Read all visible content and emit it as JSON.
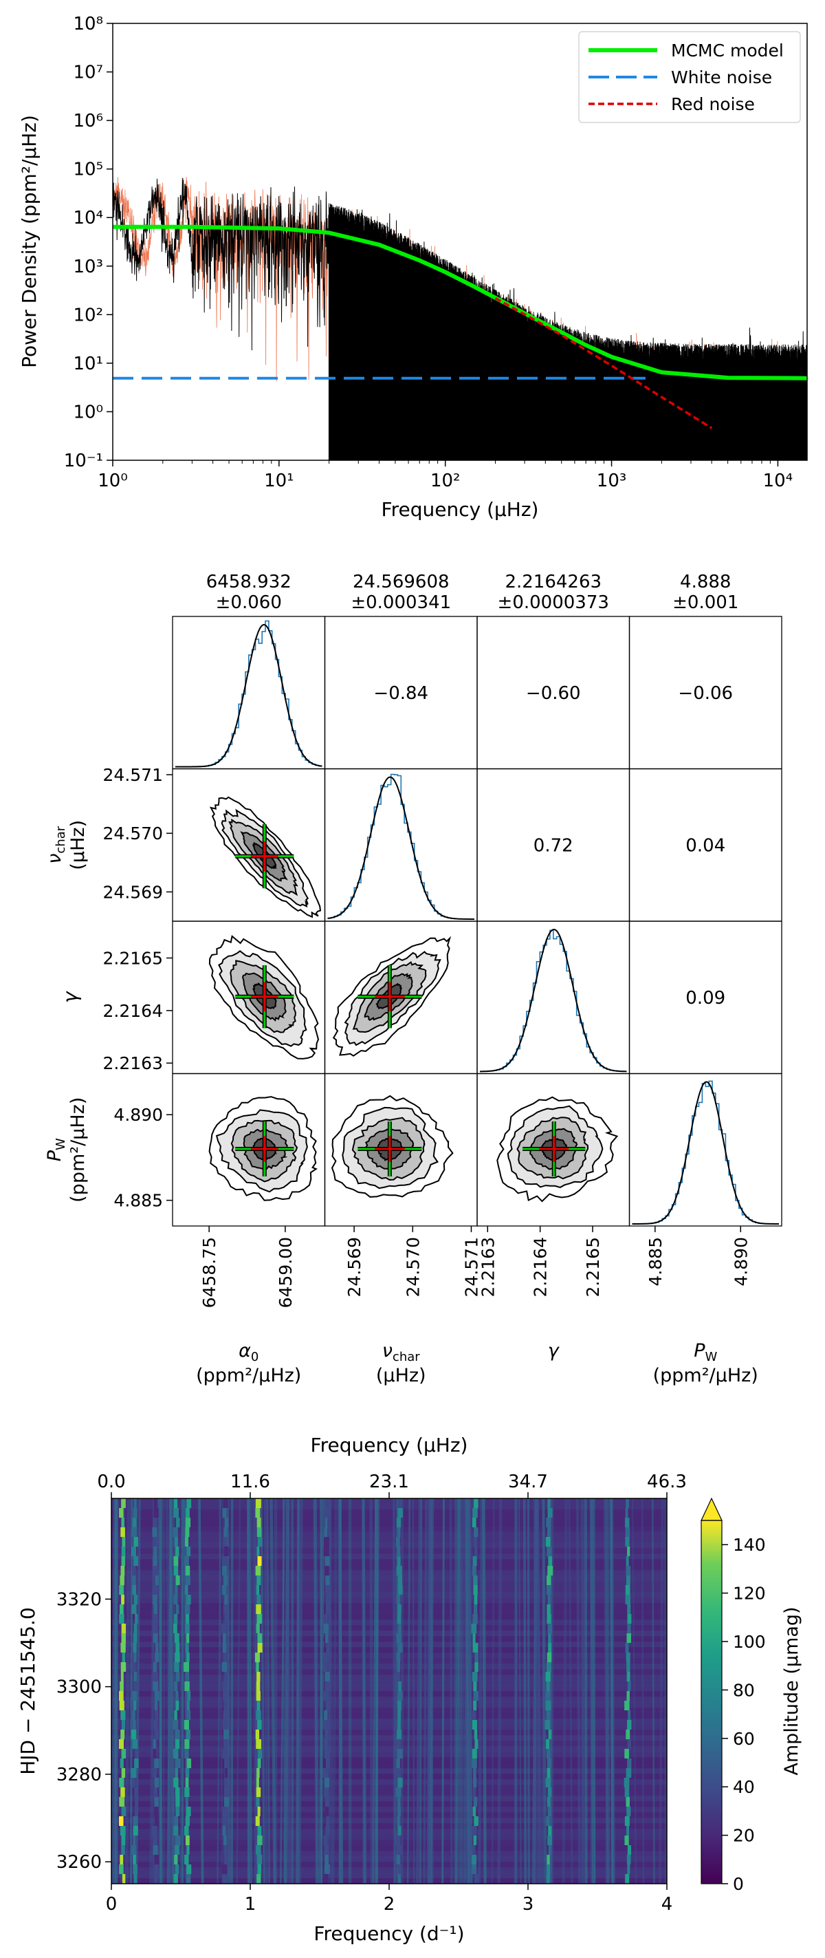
{
  "chart_data": [
    {
      "type": "line",
      "xscale": "log",
      "yscale": "log",
      "xlabel": "Frequency (μHz)",
      "ylabel": "Power Density (ppm²/μHz)",
      "xlim": [
        1,
        15000
      ],
      "ylim": [
        0.1,
        100000000
      ],
      "xticks": [
        {
          "value": 1,
          "label": "10⁰"
        },
        {
          "value": 10,
          "label": "10¹"
        },
        {
          "value": 100,
          "label": "10²"
        },
        {
          "value": 1000,
          "label": "10³"
        },
        {
          "value": 10000,
          "label": "10⁴"
        }
      ],
      "yticks": [
        {
          "value": 0.1,
          "label": "10⁻¹"
        },
        {
          "value": 1,
          "label": "10⁰"
        },
        {
          "value": 10,
          "label": "10¹"
        },
        {
          "value": 100,
          "label": "10²"
        },
        {
          "value": 1000,
          "label": "10³"
        },
        {
          "value": 10000,
          "label": "10⁴"
        },
        {
          "value": 100000,
          "label": "10⁵"
        },
        {
          "value": 1000000,
          "label": "10⁶"
        },
        {
          "value": 10000000,
          "label": "10⁷"
        },
        {
          "value": 100000000,
          "label": "10⁸"
        }
      ],
      "legend_position": "top-right",
      "series": [
        {
          "name": "MCMC model",
          "color": "#00ee00",
          "style": "solid",
          "x": [
            1,
            3,
            10,
            20,
            40,
            70,
            100,
            150,
            200,
            300,
            500,
            700,
            1000,
            2000,
            5000,
            15000
          ],
          "y": [
            6450,
            6430,
            5980,
            4860,
            2750,
            1310,
            755,
            374,
            223,
            106,
            43.2,
            23.6,
            13.5,
            6.5,
            5.0,
            4.9
          ]
        },
        {
          "name": "White noise",
          "color": "#1e88e5",
          "style": "dashed",
          "x": [
            1,
            1600
          ],
          "y": [
            4.888,
            4.888
          ]
        },
        {
          "name": "Red noise",
          "color": "#dd0000",
          "style": "dotted",
          "x": [
            200,
            300,
            500,
            1000,
            2000,
            4000
          ],
          "y": [
            218,
            101,
            38,
            8.9,
            2.0,
            0.46
          ]
        }
      ],
      "noisy_spectrum": {
        "description_colors": [
          "#000000",
          "#ee7752"
        ]
      }
    },
    {
      "type": "corner",
      "parameters": [
        {
          "name": "α₀",
          "unit": "(ppm²/μHz)",
          "value": "6458.932",
          "err": "±0.060",
          "mean": 6458.932,
          "sd": 0.06,
          "ticks": [
            "6458.75",
            "6459.00"
          ],
          "tick_values": [
            6458.75,
            6459.0
          ],
          "range": [
            6458.63,
            6459.13
          ]
        },
        {
          "name": "ν_char",
          "unit": "(μHz)",
          "value": "24.569608",
          "err": "±0.000341",
          "mean": 24.569608,
          "sd": 0.000341,
          "ticks": [
            "24.569",
            "24.570",
            "24.571"
          ],
          "tick_values": [
            24.569,
            24.57,
            24.571
          ],
          "range": [
            24.5685,
            24.5711
          ]
        },
        {
          "name": "γ",
          "unit": "",
          "value": "2.2164263",
          "err": "±0.0000373",
          "mean": 2.2164263,
          "sd": 3.73e-05,
          "ticks": [
            "2.2163",
            "2.2164",
            "2.2165"
          ],
          "tick_values": [
            2.2163,
            2.2164,
            2.2165
          ],
          "range": [
            2.21628,
            2.21657
          ]
        },
        {
          "name": "P_W",
          "unit": "(ppm²/μHz)",
          "value": "4.888",
          "err": "±0.001",
          "mean": 4.888,
          "sd": 0.001,
          "ticks": [
            "4.885",
            "4.890"
          ],
          "tick_values": [
            4.885,
            4.89
          ],
          "range": [
            4.8835,
            4.8924
          ]
        }
      ],
      "correlations": [
        {
          "row": 0,
          "col": 1,
          "value": "−0.84"
        },
        {
          "row": 0,
          "col": 2,
          "value": "−0.60"
        },
        {
          "row": 0,
          "col": 3,
          "value": "−0.06"
        },
        {
          "row": 1,
          "col": 2,
          "value": "0.72"
        },
        {
          "row": 1,
          "col": 3,
          "value": "0.04"
        },
        {
          "row": 2,
          "col": 3,
          "value": "0.09"
        }
      ],
      "row_labels": [
        {
          "main": "ν",
          "sub": "char",
          "unit": "(μHz)"
        },
        {
          "main": "γ",
          "sub": "",
          "unit": ""
        },
        {
          "main": "P",
          "sub": "W",
          "unit": "(ppm²/μHz)"
        }
      ],
      "col_labels": [
        {
          "main": "α",
          "sub": "0",
          "unit": "(ppm²/μHz)"
        },
        {
          "main": "ν",
          "sub": "char",
          "unit": "(μHz)"
        },
        {
          "main": "γ",
          "sub": "",
          "unit": ""
        },
        {
          "main": "P",
          "sub": "W",
          "unit": "(ppm²/μHz)"
        }
      ]
    },
    {
      "type": "heatmap",
      "xlabel": "Frequency (d⁻¹)",
      "x2label": "Frequency (μHz)",
      "ylabel": "HJD − 2451545.0",
      "colorbar_label": "Amplitude (μmag)",
      "xlim": [
        0,
        4
      ],
      "ylim": [
        3255,
        3343
      ],
      "clim": [
        0,
        150
      ],
      "xticks": [
        "0",
        "1",
        "2",
        "3",
        "4"
      ],
      "x2ticks": [
        "0.0",
        "11.6",
        "23.1",
        "34.7",
        "46.3"
      ],
      "yticks": [
        {
          "value": 3260,
          "label": "3260"
        },
        {
          "value": 3280,
          "label": "3280"
        },
        {
          "value": 3300,
          "label": "3300"
        },
        {
          "value": 3320,
          "label": "3320"
        }
      ],
      "colorbar_ticks": [
        "0",
        "20",
        "40",
        "60",
        "80",
        "100",
        "120",
        "140"
      ],
      "ridges": [
        {
          "freq": 0.08,
          "amp": 140
        },
        {
          "freq": 0.17,
          "amp": 80
        },
        {
          "freq": 0.32,
          "amp": 60
        },
        {
          "freq": 0.47,
          "amp": 100
        },
        {
          "freq": 0.55,
          "amp": 110
        },
        {
          "freq": 0.82,
          "amp": 55
        },
        {
          "freq": 1.06,
          "amp": 140
        },
        {
          "freq": 1.55,
          "amp": 55
        },
        {
          "freq": 2.07,
          "amp": 75
        },
        {
          "freq": 2.62,
          "amp": 90
        },
        {
          "freq": 3.15,
          "amp": 95
        },
        {
          "freq": 3.72,
          "amp": 100
        }
      ]
    }
  ]
}
